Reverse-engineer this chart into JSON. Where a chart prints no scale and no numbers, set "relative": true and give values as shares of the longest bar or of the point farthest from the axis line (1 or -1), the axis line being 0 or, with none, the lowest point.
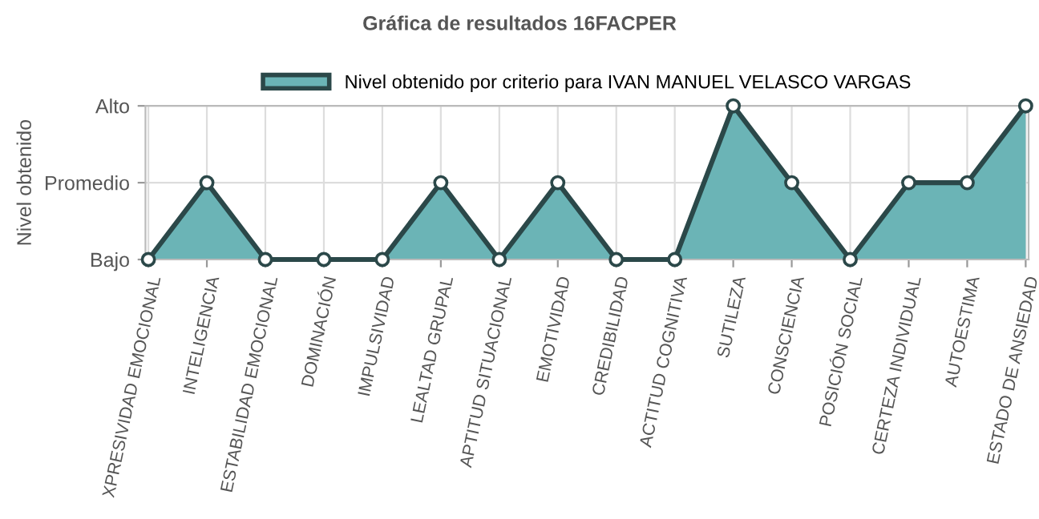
{
  "chart_data": {
    "type": "area",
    "title": "Gráfica de resultados 16FACPER",
    "ylabel": "Nivel obtenido",
    "categories": [
      "XPRESIVIDAD EMOCIONAL",
      "INTELIGENCIA",
      "ESTABILIDAD EMOCIONAL",
      "DOMINACIÓN",
      "IMPULSIVIDAD",
      "LEALTAD GRUPAL",
      "APTITUD SITUACIONAL",
      "EMOTIVIDAD",
      "CREDIBILIDAD",
      "ACTITUD COGNITIVA",
      "SUTILEZA",
      "CONSCIENCIA",
      "POSICIÓN SOCIAL",
      "CERTEZA INDIVIDUAL",
      "AUTOESTIMA",
      "ESTADO DE ANSIEDAD"
    ],
    "series": [
      {
        "name": "Nivel obtenido por criterio para IVAN MANUEL VELASCO VARGAS",
        "color": "#6bb4b6",
        "values": [
          0,
          0.5,
          0,
          0,
          0,
          0.5,
          0,
          0.5,
          0,
          0,
          1,
          0.5,
          0,
          0.5,
          0.5,
          1
        ]
      }
    ],
    "relative": true,
    "annotations": [
      "Bajo",
      "Promedio",
      "Alto"
    ],
    "grid": true,
    "legend": "top",
    "marker": "circle",
    "line_style": "solid"
  }
}
